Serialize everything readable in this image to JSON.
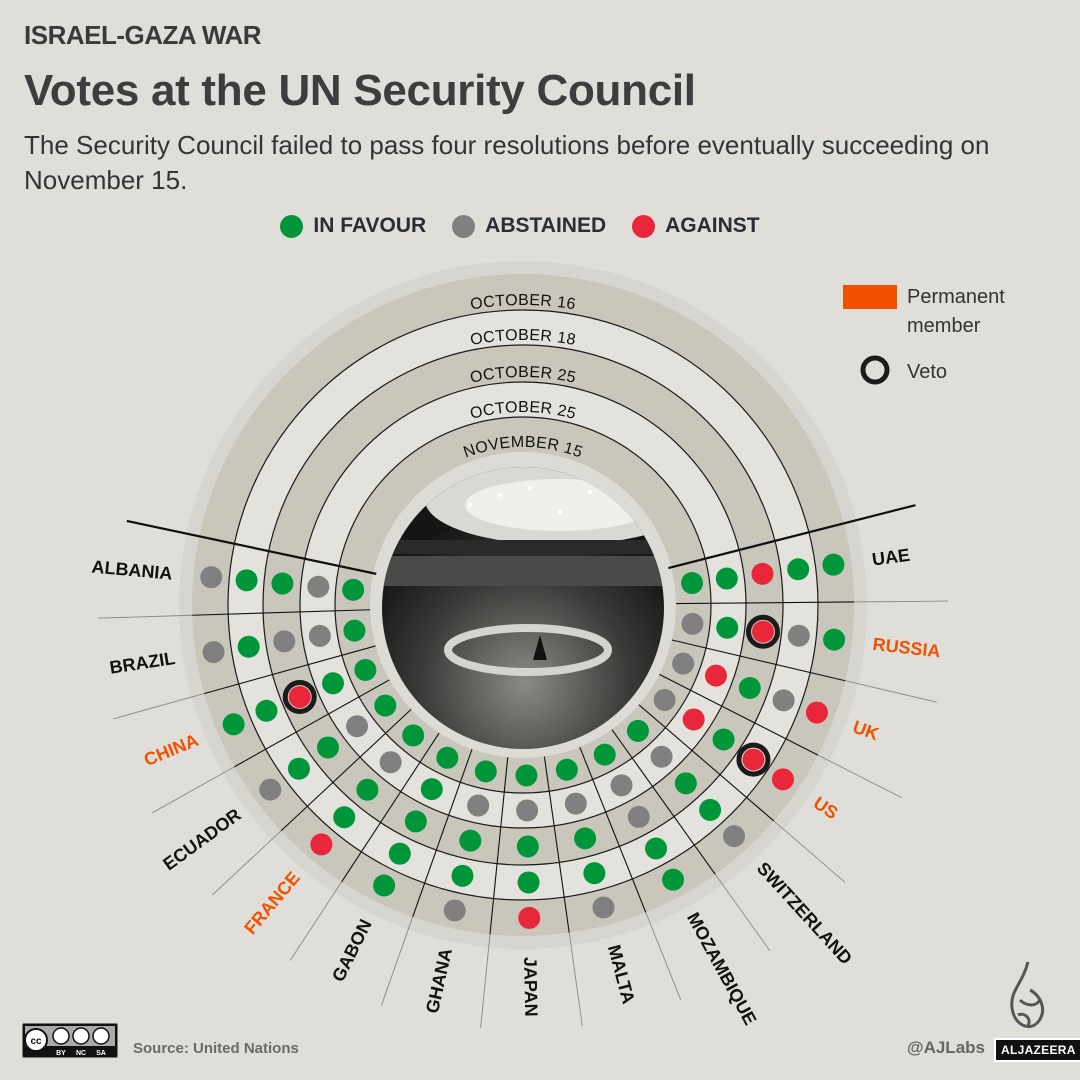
{
  "header": {
    "kicker": "ISRAEL-GAZA WAR",
    "title": "Votes at the UN Security Council",
    "subtitle": "The Security Council failed to pass four resolutions before eventually succeeding on November 15."
  },
  "legend": {
    "in_favour": "IN FAVOUR",
    "abstained": "ABSTAINED",
    "against": "AGAINST",
    "permanent_line1": "Permanent",
    "permanent_line2": "member",
    "veto": "Veto"
  },
  "colors": {
    "in_favour": "#009639",
    "abstained": "#808080",
    "against": "#e8283a",
    "permanent": "#f25200",
    "country": "#111111"
  },
  "chart_data": {
    "type": "radial-dot-matrix",
    "title": "Votes at the UN Security Council",
    "rings": [
      "OCTOBER 16",
      "OCTOBER 18",
      "OCTOBER 25",
      "OCTOBER 25",
      "NOVEMBER 15"
    ],
    "vote_codes": {
      "F": "in favour",
      "N": "abstained",
      "A": "against"
    },
    "countries": [
      {
        "name": "ALBANIA",
        "permanent": false,
        "votes": [
          "N",
          "F",
          "F",
          "N",
          "F"
        ],
        "vetoes": []
      },
      {
        "name": "BRAZIL",
        "permanent": false,
        "votes": [
          "N",
          "F",
          "N",
          "N",
          "F"
        ],
        "vetoes": []
      },
      {
        "name": "CHINA",
        "permanent": true,
        "votes": [
          "F",
          "F",
          "A",
          "F",
          "F"
        ],
        "vetoes": [
          2
        ]
      },
      {
        "name": "ECUADOR",
        "permanent": false,
        "votes": [
          "N",
          "F",
          "F",
          "N",
          "F"
        ],
        "vetoes": []
      },
      {
        "name": "FRANCE",
        "permanent": true,
        "votes": [
          "A",
          "F",
          "F",
          "N",
          "F"
        ],
        "vetoes": []
      },
      {
        "name": "GABON",
        "permanent": false,
        "votes": [
          "F",
          "F",
          "F",
          "F",
          "F"
        ],
        "vetoes": []
      },
      {
        "name": "GHANA",
        "permanent": false,
        "votes": [
          "N",
          "F",
          "F",
          "N",
          "F"
        ],
        "vetoes": []
      },
      {
        "name": "JAPAN",
        "permanent": false,
        "votes": [
          "A",
          "F",
          "F",
          "N",
          "F"
        ],
        "vetoes": []
      },
      {
        "name": "MALTA",
        "permanent": false,
        "votes": [
          "N",
          "F",
          "F",
          "N",
          "F"
        ],
        "vetoes": []
      },
      {
        "name": "MOZAMBIQUE",
        "permanent": false,
        "votes": [
          "F",
          "F",
          "N",
          "N",
          "F"
        ],
        "vetoes": []
      },
      {
        "name": "SWITZERLAND",
        "permanent": false,
        "votes": [
          "N",
          "F",
          "F",
          "N",
          "F"
        ],
        "vetoes": []
      },
      {
        "name": "US",
        "permanent": true,
        "votes": [
          "A",
          "A",
          "F",
          "A",
          "N"
        ],
        "vetoes": [
          1
        ]
      },
      {
        "name": "UK",
        "permanent": true,
        "votes": [
          "A",
          "N",
          "F",
          "A",
          "N"
        ],
        "vetoes": []
      },
      {
        "name": "RUSSIA",
        "permanent": true,
        "votes": [
          "F",
          "N",
          "A",
          "F",
          "N"
        ],
        "vetoes": [
          2
        ]
      },
      {
        "name": "UAE",
        "permanent": false,
        "votes": [
          "F",
          "F",
          "A",
          "F",
          "F"
        ],
        "vetoes": []
      }
    ]
  },
  "footer": {
    "license": [
      "BY",
      "NC",
      "SA"
    ],
    "source": "Source: United Nations",
    "handle": "@AJLabs",
    "brand": "ALJAZEERA"
  }
}
